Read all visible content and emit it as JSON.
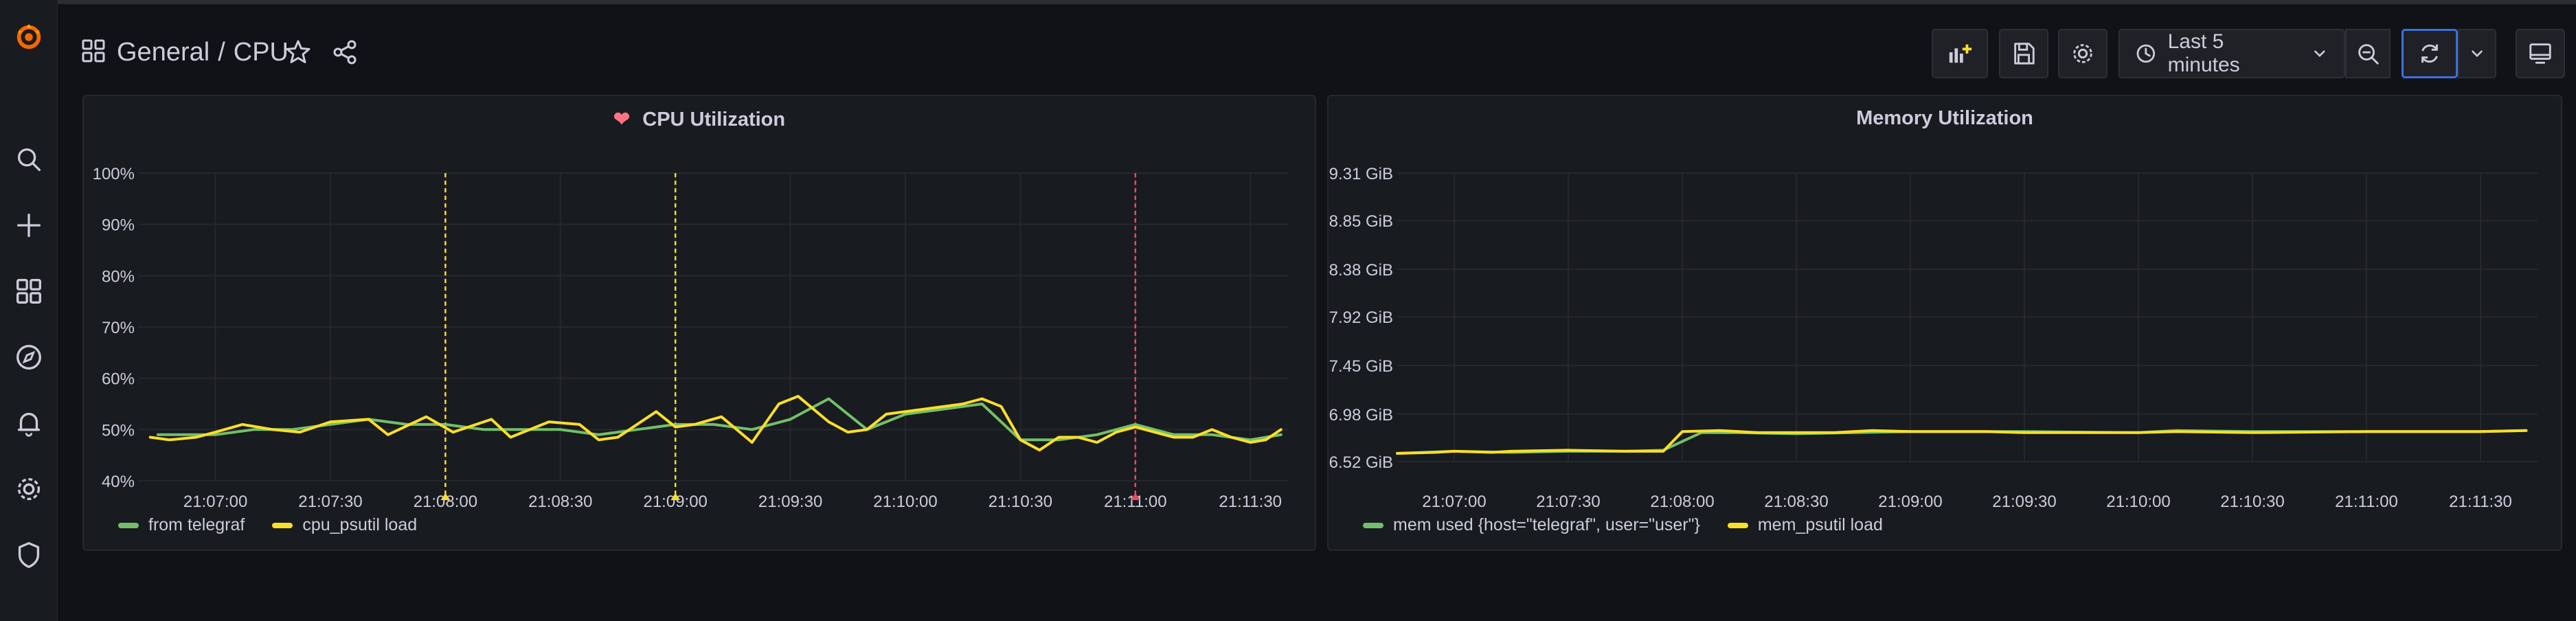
{
  "header": {
    "folder": "General",
    "separator": "/",
    "dashboard": "CPU",
    "time_range": "Last 5 minutes"
  },
  "colors": {
    "series_green": "#73bf69",
    "series_yellow": "#fade2a",
    "annotation_red": "#f2495c",
    "accent_blue": "#3d71d9"
  },
  "icons": {
    "logo": "grafana-logo-icon",
    "sidebar": [
      "search-icon",
      "plus-icon",
      "dashboards-icon",
      "explore-icon",
      "bell-icon",
      "gear-icon",
      "shield-icon"
    ]
  },
  "panels": [
    {
      "title": "CPU Utilization",
      "chart_data": {
        "type": "line",
        "title": "CPU Utilization",
        "x_ticks": [
          "21:07:00",
          "21:07:30",
          "21:08:00",
          "21:08:30",
          "21:09:00",
          "21:09:30",
          "21:10:00",
          "21:10:30",
          "21:11:00",
          "21:11:30"
        ],
        "y_ticks": [
          "100%",
          "90%",
          "80%",
          "70%",
          "60%",
          "50%",
          "40%"
        ],
        "ylim": [
          40,
          100
        ],
        "xlim": [
          "21:06:40",
          "21:11:40"
        ],
        "series": [
          {
            "name": "from telegraf",
            "color": "#73bf69",
            "points": [
              [
                "21:06:45",
                49
              ],
              [
                "21:07:00",
                49
              ],
              [
                "21:07:10",
                50
              ],
              [
                "21:07:20",
                50
              ],
              [
                "21:07:30",
                51
              ],
              [
                "21:07:40",
                52
              ],
              [
                "21:07:50",
                51
              ],
              [
                "21:08:00",
                51
              ],
              [
                "21:08:10",
                50
              ],
              [
                "21:08:20",
                50
              ],
              [
                "21:08:30",
                50
              ],
              [
                "21:08:40",
                49
              ],
              [
                "21:08:50",
                50
              ],
              [
                "21:09:00",
                51
              ],
              [
                "21:09:10",
                51
              ],
              [
                "21:09:20",
                50
              ],
              [
                "21:09:30",
                52
              ],
              [
                "21:09:40",
                56
              ],
              [
                "21:09:50",
                50
              ],
              [
                "21:10:00",
                53
              ],
              [
                "21:10:10",
                54
              ],
              [
                "21:10:20",
                55
              ],
              [
                "21:10:30",
                48
              ],
              [
                "21:10:40",
                48
              ],
              [
                "21:10:50",
                49
              ],
              [
                "21:11:00",
                51
              ],
              [
                "21:11:10",
                49
              ],
              [
                "21:11:20",
                49
              ],
              [
                "21:11:30",
                48
              ],
              [
                "21:11:38",
                49
              ]
            ]
          },
          {
            "name": "cpu_psutil load",
            "color": "#fade2a",
            "points": [
              [
                "21:06:43",
                48.5
              ],
              [
                "21:06:48",
                48
              ],
              [
                "21:06:55",
                48.5
              ],
              [
                "21:07:00",
                49.5
              ],
              [
                "21:07:07",
                51
              ],
              [
                "21:07:15",
                50
              ],
              [
                "21:07:22",
                49.5
              ],
              [
                "21:07:30",
                51.5
              ],
              [
                "21:07:40",
                52
              ],
              [
                "21:07:45",
                49
              ],
              [
                "21:07:55",
                52.5
              ],
              [
                "21:08:02",
                49.5
              ],
              [
                "21:08:12",
                52
              ],
              [
                "21:08:17",
                48.5
              ],
              [
                "21:08:27",
                51.5
              ],
              [
                "21:08:35",
                51
              ],
              [
                "21:08:40",
                48
              ],
              [
                "21:08:45",
                48.5
              ],
              [
                "21:08:55",
                53.5
              ],
              [
                "21:09:00",
                50.5
              ],
              [
                "21:09:05",
                51
              ],
              [
                "21:09:12",
                52.5
              ],
              [
                "21:09:20",
                47.5
              ],
              [
                "21:09:27",
                55
              ],
              [
                "21:09:32",
                56.5
              ],
              [
                "21:09:40",
                51.5
              ],
              [
                "21:09:45",
                49.5
              ],
              [
                "21:09:50",
                50
              ],
              [
                "21:09:55",
                53
              ],
              [
                "21:10:05",
                54
              ],
              [
                "21:10:15",
                55
              ],
              [
                "21:10:20",
                56
              ],
              [
                "21:10:25",
                54.5
              ],
              [
                "21:10:30",
                48
              ],
              [
                "21:10:35",
                46
              ],
              [
                "21:10:40",
                48.5
              ],
              [
                "21:10:45",
                48.5
              ],
              [
                "21:10:50",
                47.5
              ],
              [
                "21:10:55",
                49.5
              ],
              [
                "21:11:00",
                50.5
              ],
              [
                "21:11:10",
                48.5
              ],
              [
                "21:11:15",
                48.5
              ],
              [
                "21:11:20",
                50
              ],
              [
                "21:11:25",
                48.5
              ],
              [
                "21:11:30",
                47.5
              ],
              [
                "21:11:34",
                48
              ],
              [
                "21:11:38",
                50
              ]
            ]
          }
        ],
        "annotations": [
          {
            "time": "21:08:00",
            "color": "#fade2a"
          },
          {
            "time": "21:09:00",
            "color": "#fade2a"
          },
          {
            "time": "21:11:00",
            "color": "#f2495c"
          }
        ],
        "grid": true,
        "legend_position": "bottom-left"
      }
    },
    {
      "title": "Memory Utilization",
      "chart_data": {
        "type": "line",
        "title": "Memory Utilization",
        "x_ticks": [
          "21:07:00",
          "21:07:30",
          "21:08:00",
          "21:08:30",
          "21:09:00",
          "21:09:30",
          "21:10:00",
          "21:10:30",
          "21:11:00",
          "21:11:30"
        ],
        "y_ticks": [
          "9.31 GiB",
          "8.85 GiB",
          "8.38 GiB",
          "7.92 GiB",
          "7.45 GiB",
          "6.98 GiB",
          "6.52 GiB"
        ],
        "y_tick_values": [
          9.31,
          8.85,
          8.38,
          7.92,
          7.45,
          6.98,
          6.52
        ],
        "ylim": [
          6.52,
          9.31
        ],
        "xlim": [
          "21:06:45",
          "21:11:45"
        ],
        "series": [
          {
            "name": "mem used {host=\"telegraf\", user=\"user\"}",
            "color": "#73bf69",
            "points": [
              [
                "21:06:45",
                6.6
              ],
              [
                "21:07:00",
                6.62
              ],
              [
                "21:07:15",
                6.61
              ],
              [
                "21:07:30",
                6.62
              ],
              [
                "21:07:45",
                6.62
              ],
              [
                "21:07:55",
                6.63
              ],
              [
                "21:08:05",
                6.8
              ],
              [
                "21:08:15",
                6.8
              ],
              [
                "21:08:30",
                6.79
              ],
              [
                "21:09:00",
                6.81
              ],
              [
                "21:09:30",
                6.81
              ],
              [
                "21:10:00",
                6.8
              ],
              [
                "21:10:10",
                6.82
              ],
              [
                "21:10:30",
                6.81
              ],
              [
                "21:11:00",
                6.81
              ],
              [
                "21:11:30",
                6.81
              ],
              [
                "21:11:42",
                6.82
              ]
            ]
          },
          {
            "name": "mem_psutil load",
            "color": "#fade2a",
            "points": [
              [
                "21:06:45",
                6.6
              ],
              [
                "21:06:55",
                6.61
              ],
              [
                "21:07:00",
                6.62
              ],
              [
                "21:07:10",
                6.61
              ],
              [
                "21:07:15",
                6.62
              ],
              [
                "21:07:30",
                6.63
              ],
              [
                "21:07:45",
                6.62
              ],
              [
                "21:07:55",
                6.62
              ],
              [
                "21:08:00",
                6.81
              ],
              [
                "21:08:10",
                6.82
              ],
              [
                "21:08:20",
                6.8
              ],
              [
                "21:08:40",
                6.8
              ],
              [
                "21:08:50",
                6.82
              ],
              [
                "21:09:00",
                6.81
              ],
              [
                "21:09:20",
                6.81
              ],
              [
                "21:09:30",
                6.8
              ],
              [
                "21:10:00",
                6.8
              ],
              [
                "21:10:10",
                6.81
              ],
              [
                "21:10:30",
                6.8
              ],
              [
                "21:11:00",
                6.81
              ],
              [
                "21:11:30",
                6.81
              ],
              [
                "21:11:42",
                6.82
              ]
            ]
          }
        ],
        "grid": true,
        "legend_position": "bottom-left"
      }
    }
  ]
}
